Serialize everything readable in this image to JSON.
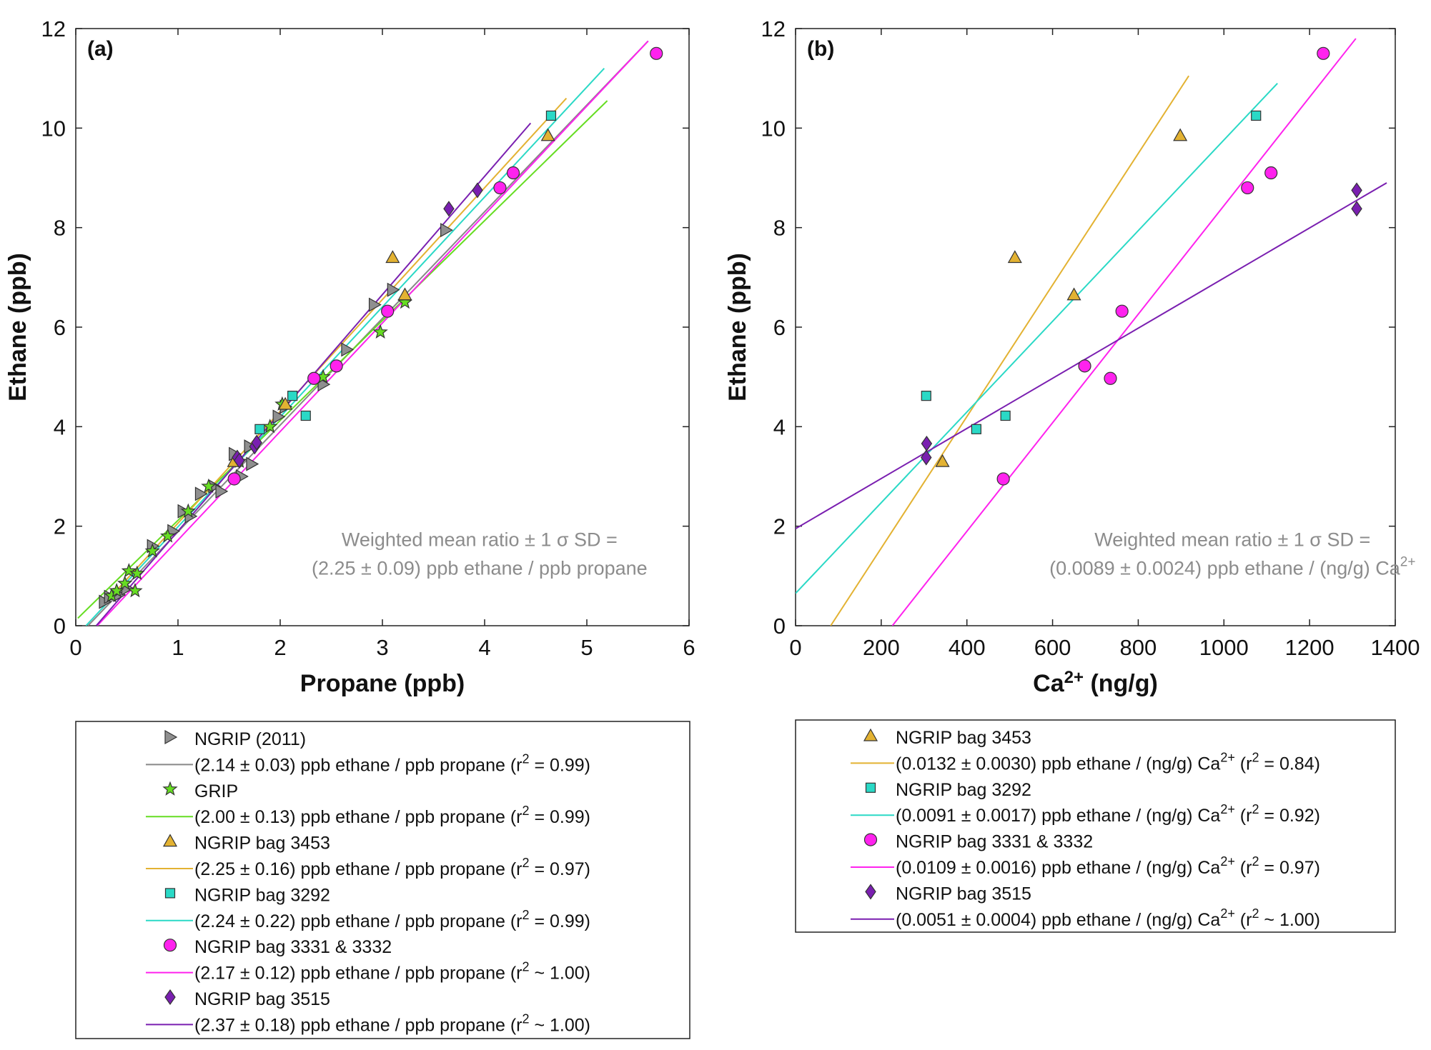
{
  "colors": {
    "NGRIP (2011)": "#8f8f8f",
    "GRIP": "#66dd22",
    "NGRIP bag 3453": "#e3b232",
    "NGRIP bag 3292": "#2ad9c6",
    "NGRIP bag 3331 & 3332": "#ff22ee",
    "NGRIP bag 3515": "#7a1fb0",
    "fit_NGRIP (2011)": "#888888",
    "axis": "#222222",
    "annotation": "#8c8c8c"
  },
  "chart_data": [
    {
      "type": "scatter",
      "panel_label": "(a)",
      "xlabel": "Propane (ppb)",
      "ylabel": "Ethane (ppb)",
      "xlim": [
        0,
        6
      ],
      "ylim": [
        0,
        12
      ],
      "xticks": [
        "0",
        "1",
        "2",
        "3",
        "4",
        "5",
        "6"
      ],
      "yticks": [
        "0",
        "2",
        "4",
        "6",
        "8",
        "10",
        "12"
      ],
      "annotation": [
        "Weighted mean ratio ± 1 σ SD =",
        "(2.25 ± 0.09) ppb ethane / ppb propane"
      ],
      "series": [
        {
          "name": "NGRIP (2011)",
          "marker": "triangle-right",
          "color_key": "NGRIP (2011)",
          "points": [
            [
              0.28,
              0.48
            ],
            [
              0.33,
              0.58
            ],
            [
              0.42,
              0.62
            ],
            [
              0.5,
              0.75
            ],
            [
              0.75,
              1.6
            ],
            [
              0.95,
              1.9
            ],
            [
              1.05,
              2.3
            ],
            [
              1.12,
              2.2
            ],
            [
              1.22,
              2.65
            ],
            [
              1.35,
              2.8
            ],
            [
              1.42,
              2.7
            ],
            [
              1.55,
              3.45
            ],
            [
              1.62,
              3.0
            ],
            [
              1.72,
              3.25
            ],
            [
              1.7,
              3.6
            ],
            [
              1.98,
              4.2
            ],
            [
              2.05,
              4.4
            ],
            [
              2.42,
              4.85
            ],
            [
              2.65,
              5.55
            ],
            [
              2.92,
              6.45
            ],
            [
              3.1,
              6.75
            ],
            [
              3.62,
              7.95
            ]
          ],
          "fit": {
            "label": "(2.14 ± 0.03) ppb ethane / ppb propane (r",
            "r2": " = 0.99)",
            "x": [
              0.12,
              5.6
            ],
            "y": [
              0.0,
              11.75
            ],
            "color_key": "fit_NGRIP (2011)"
          }
        },
        {
          "name": "GRIP",
          "marker": "star",
          "color_key": "GRIP",
          "points": [
            [
              0.35,
              0.6
            ],
            [
              0.4,
              0.7
            ],
            [
              0.48,
              0.85
            ],
            [
              0.52,
              1.1
            ],
            [
              0.58,
              0.7
            ],
            [
              0.6,
              1.05
            ],
            [
              0.75,
              1.5
            ],
            [
              0.9,
              1.8
            ],
            [
              1.1,
              2.3
            ],
            [
              1.3,
              2.8
            ],
            [
              1.6,
              3.3
            ],
            [
              1.9,
              4.0
            ],
            [
              2.02,
              4.45
            ],
            [
              2.42,
              5.0
            ],
            [
              2.98,
              5.9
            ],
            [
              3.22,
              6.5
            ]
          ],
          "fit": {
            "label": "(2.00 ± 0.13) ppb ethane / ppb propane (r",
            "r2": " = 0.99)",
            "x": [
              0.02,
              5.2
            ],
            "y": [
              0.15,
              10.55
            ],
            "color_key": "GRIP"
          }
        },
        {
          "name": "NGRIP bag 3453",
          "marker": "triangle-up",
          "color_key": "NGRIP bag 3453",
          "points": [
            [
              1.55,
              3.3
            ],
            [
              2.05,
              4.45
            ],
            [
              3.1,
              7.4
            ],
            [
              3.22,
              6.65
            ],
            [
              4.62,
              9.85
            ]
          ],
          "fit": {
            "label": "(2.25 ± 0.16) ppb ethane / ppb propane (r",
            "r2": " = 0.97)",
            "x": [
              0.35,
              4.8
            ],
            "y": [
              0.6,
              10.6
            ],
            "color_key": "NGRIP bag 3453"
          }
        },
        {
          "name": "NGRIP bag 3292",
          "marker": "square",
          "color_key": "NGRIP bag 3292",
          "points": [
            [
              1.8,
              3.95
            ],
            [
              2.12,
              4.62
            ],
            [
              2.25,
              4.22
            ],
            [
              4.65,
              10.25
            ]
          ],
          "fit": {
            "label": "(2.24 ± 0.22) ppb ethane / ppb propane (r",
            "r2": " =  0.99)",
            "x": [
              0.1,
              5.17
            ],
            "y": [
              0.0,
              11.2
            ],
            "color_key": "NGRIP bag 3292"
          }
        },
        {
          "name": "NGRIP bag 3331 & 3332",
          "marker": "circle",
          "color_key": "NGRIP bag 3331 & 3332",
          "points": [
            [
              1.55,
              2.95
            ],
            [
              2.33,
              4.97
            ],
            [
              2.55,
              5.22
            ],
            [
              3.05,
              6.32
            ],
            [
              4.15,
              8.8
            ],
            [
              4.28,
              9.1
            ],
            [
              5.68,
              11.5
            ]
          ],
          "fit": {
            "label": "(2.17 ± 0.12) ppb ethane / ppb propane (r",
            "r2": " ~ 1.00)",
            "x": [
              0.21,
              5.6
            ],
            "y": [
              0.0,
              11.75
            ],
            "color_key": "NGRIP bag 3331 & 3332"
          }
        },
        {
          "name": "NGRIP bag 3515",
          "marker": "diamond",
          "color_key": "NGRIP bag 3515",
          "points": [
            [
              1.58,
              3.38
            ],
            [
              1.6,
              3.32
            ],
            [
              1.75,
              3.6
            ],
            [
              1.77,
              3.68
            ],
            [
              3.65,
              8.38
            ],
            [
              3.93,
              8.75
            ]
          ],
          "fit": {
            "label": "(2.37 ± 0.18) ppb ethane / ppb propane (r",
            "r2": " ~ 1.00)",
            "x": [
              0.2,
              4.45
            ],
            "y": [
              0.0,
              10.1
            ],
            "color_key": "NGRIP bag 3515"
          }
        }
      ]
    },
    {
      "type": "scatter",
      "panel_label": "(b)",
      "xlabel": "Ca",
      "xlabel_sup": "2+",
      "xlabel_unit": " (ng/g)",
      "ylabel": "Ethane (ppb)",
      "xlim": [
        0,
        1400
      ],
      "ylim": [
        0,
        12
      ],
      "xticks": [
        "0",
        "200",
        "400",
        "600",
        "800",
        "1000",
        "1200",
        "1400"
      ],
      "yticks": [
        "0",
        "2",
        "4",
        "6",
        "8",
        "10",
        "12"
      ],
      "annotation": [
        "Weighted mean ratio ± 1 σ SD =",
        "(0.0089 ± 0.0024) ppb ethane / (ng/g) Ca"
      ],
      "annotation_sup": "2+",
      "series": [
        {
          "name": "NGRIP bag 3453",
          "marker": "triangle-up",
          "color_key": "NGRIP bag 3453",
          "points": [
            [
              343,
              3.3
            ],
            [
              512,
              7.4
            ],
            [
              650,
              6.65
            ],
            [
              898,
              9.85
            ]
          ],
          "fit": {
            "label": "(0.0132 ± 0.0030) ppb ethane / (ng/g) Ca",
            "sup": "2+",
            "r2": " = 0.84)",
            "x": [
              82,
              918
            ],
            "y": [
              0.0,
              11.05
            ],
            "color_key": "NGRIP bag 3453"
          }
        },
        {
          "name": "NGRIP bag 3292",
          "marker": "square",
          "color_key": "NGRIP bag 3292",
          "points": [
            [
              305,
              4.62
            ],
            [
              422,
              3.95
            ],
            [
              490,
              4.22
            ],
            [
              1075,
              10.25
            ]
          ],
          "fit": {
            "label": "(0.0091 ± 0.0017) ppb ethane / (ng/g) Ca",
            "sup": "2+",
            "r2": " = 0.92)",
            "x": [
              0,
              1125
            ],
            "y": [
              0.65,
              10.9
            ],
            "color_key": "NGRIP bag 3292"
          }
        },
        {
          "name": "NGRIP bag 3331 & 3332",
          "marker": "circle",
          "color_key": "NGRIP bag 3331 & 3332",
          "points": [
            [
              485,
              2.95
            ],
            [
              675,
              5.22
            ],
            [
              735,
              4.97
            ],
            [
              762,
              6.32
            ],
            [
              1055,
              8.8
            ],
            [
              1110,
              9.1
            ],
            [
              1232,
              11.5
            ]
          ],
          "fit": {
            "label": "(0.0109 ± 0.0016) ppb ethane / (ng/g) Ca",
            "sup": "2+",
            "r2": " = 0.97)",
            "x": [
              226,
              1308
            ],
            "y": [
              0.0,
              11.8
            ],
            "color_key": "NGRIP bag 3331 & 3332"
          }
        },
        {
          "name": "NGRIP bag 3515",
          "marker": "diamond",
          "color_key": "NGRIP bag 3515",
          "points": [
            [
              305,
              3.38
            ],
            [
              306,
              3.66
            ],
            [
              1310,
              8.38
            ],
            [
              1310,
              8.75
            ]
          ],
          "fit": {
            "label": "(0.0051 ± 0.0004) ppb ethane / (ng/g) Ca",
            "sup": "2+",
            "r2": " ~ 1.00)",
            "x": [
              0,
              1380
            ],
            "y": [
              1.95,
              8.9
            ],
            "color_key": "NGRIP bag 3515"
          }
        }
      ]
    }
  ]
}
